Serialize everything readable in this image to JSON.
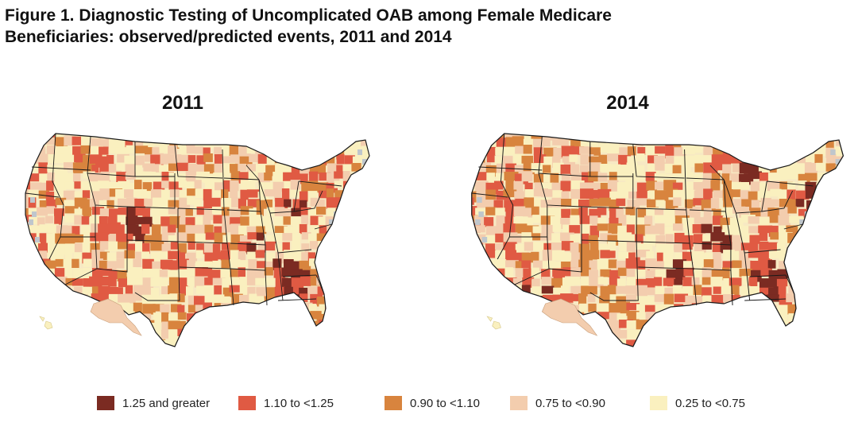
{
  "title": {
    "line1": "Figure 1. Diagnostic Testing of Uncomplicated OAB among Female Medicare",
    "line2": "Beneficiaries: observed/predicted events, 2011 and 2014"
  },
  "maps": [
    {
      "year": "2011"
    },
    {
      "year": "2014"
    }
  ],
  "legend": [
    {
      "label": "1.25 and greater",
      "color": "#7b2b22"
    },
    {
      "label": "1.10 to <1.25",
      "color": "#e05a43"
    },
    {
      "label": "0.90 to <1.10",
      "color": "#d8843e"
    },
    {
      "label": "0.75 to <0.90",
      "color": "#f3cdae"
    },
    {
      "label": "0.25 to <0.75",
      "color": "#faf0bf"
    }
  ],
  "colors": {
    "land_base": "#f7e9c3",
    "state_border": "#1a1a1a",
    "missing_data": "#bfc6cc"
  }
}
